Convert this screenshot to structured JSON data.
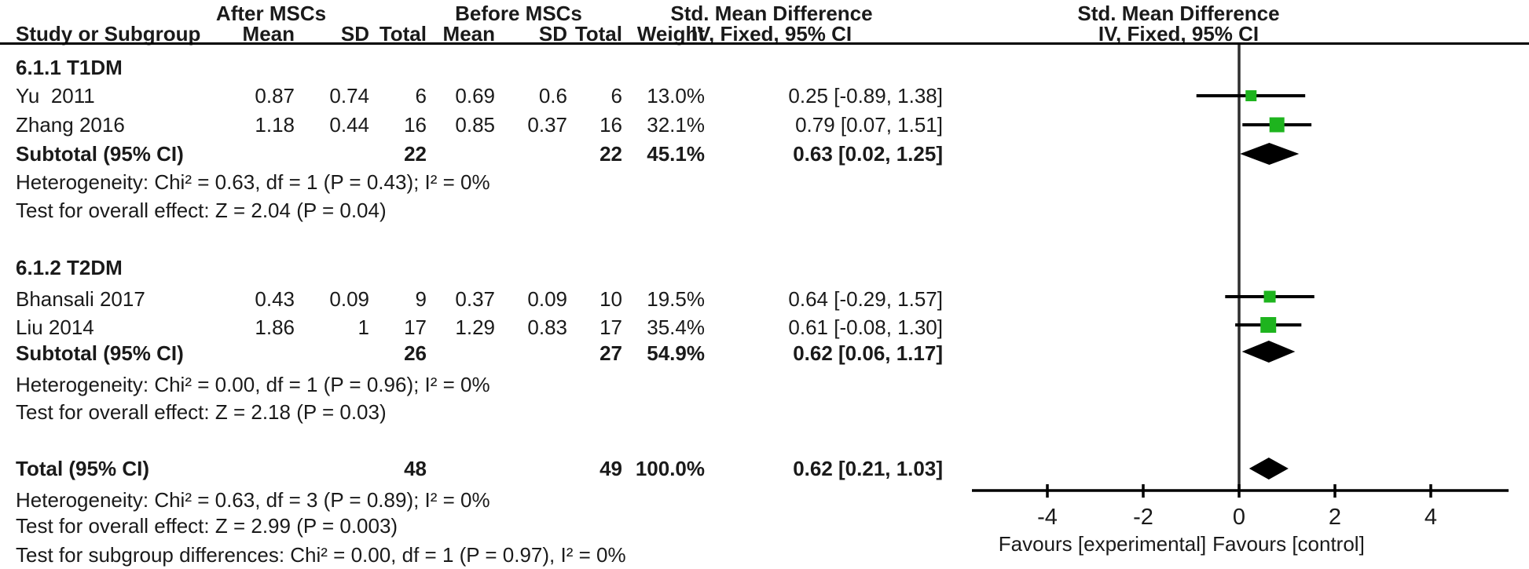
{
  "colors": {
    "marker_green": "#1eb41e",
    "diamond_black": "#000000",
    "line_black": "#2e2e2e",
    "text": "#1a1a1a"
  },
  "header": {
    "group1": "After MSCs",
    "group2": "Before MSCs",
    "effect_left_line1": "Std. Mean Difference",
    "effect_left_line2": "IV, Fixed, 95% CI",
    "effect_right_line1": "Std. Mean Difference",
    "effect_right_line2": "IV, Fixed, 95% CI",
    "study": "Study or Subgroup",
    "mean1": "Mean",
    "sd1": "SD",
    "total1": "Total",
    "mean2": "Mean",
    "sd2": "SD",
    "total2": "Total",
    "weight": "Weight"
  },
  "table": {
    "sections": [
      {
        "heading": "6.1.1 T1DM",
        "studies": [
          {
            "study": "Yu  2011",
            "mean1": "0.87",
            "sd1": "0.74",
            "total1": "6",
            "mean2": "0.69",
            "sd2": "0.6",
            "total2": "6",
            "weight": "13.0%",
            "ci": "0.25 [-0.89, 1.38]"
          },
          {
            "study": "Zhang 2016",
            "mean1": "1.18",
            "sd1": "0.44",
            "total1": "16",
            "mean2": "0.85",
            "sd2": "0.37",
            "total2": "16",
            "weight": "32.1%",
            "ci": "0.79 [0.07, 1.51]"
          }
        ],
        "subtotal": {
          "label": "Subtotal (95% CI)",
          "total1": "22",
          "total2": "22",
          "weight": "45.1%",
          "ci": "0.63 [0.02, 1.25]"
        },
        "heterogeneity": "Heterogeneity: Chi² = 0.63, df = 1 (P = 0.43); I² = 0%",
        "overall_effect": "Test for overall effect: Z = 2.04 (P = 0.04)"
      },
      {
        "heading": "6.1.2 T2DM",
        "studies": [
          {
            "study": "Bhansali 2017",
            "mean1": "0.43",
            "sd1": "0.09",
            "total1": "9",
            "mean2": "0.37",
            "sd2": "0.09",
            "total2": "10",
            "weight": "19.5%",
            "ci": "0.64 [-0.29, 1.57]"
          },
          {
            "study": "Liu 2014",
            "mean1": "1.86",
            "sd1": "1",
            "total1": "17",
            "mean2": "1.29",
            "sd2": "0.83",
            "total2": "17",
            "weight": "35.4%",
            "ci": "0.61 [-0.08, 1.30]"
          }
        ],
        "subtotal": {
          "label": "Subtotal (95% CI)",
          "total1": "26",
          "total2": "27",
          "weight": "54.9%",
          "ci": "0.62 [0.06, 1.17]"
        },
        "heterogeneity": "Heterogeneity: Chi² = 0.00, df = 1 (P = 0.96); I² = 0%",
        "overall_effect": "Test for overall effect: Z = 2.18 (P = 0.03)"
      }
    ],
    "total": {
      "label": "Total (95% CI)",
      "total1": "48",
      "total2": "49",
      "weight": "100.0%",
      "ci": "0.62 [0.21, 1.03]"
    },
    "footer": {
      "heterogeneity": "Heterogeneity: Chi² = 0.63, df = 3 (P = 0.89); I² = 0%",
      "overall_effect": "Test for overall effect: Z = 2.99 (P = 0.003)",
      "subgroup_diff": "Test for subgroup differences: Chi² = 0.00, df = 1 (P = 0.97), I² = 0%"
    }
  },
  "chart_data": {
    "type": "forest",
    "title": "Std. Mean Difference",
    "method": "IV, Fixed, 95% CI",
    "x_axis": {
      "ticks": [
        -4,
        -2,
        0,
        2,
        4
      ],
      "range": [
        -5.6,
        5.6
      ],
      "zero_line": 0
    },
    "axis_labels": {
      "left": "Favours [experimental]",
      "right": "Favours [control]"
    },
    "points": [
      {
        "row": "yu-2011",
        "label": "Yu 2011",
        "type": "study",
        "smd": 0.25,
        "ci_low": -0.89,
        "ci_high": 1.38,
        "weight": 13.0
      },
      {
        "row": "zhang-2016",
        "label": "Zhang 2016",
        "type": "study",
        "smd": 0.79,
        "ci_low": 0.07,
        "ci_high": 1.51,
        "weight": 32.1
      },
      {
        "row": "subtotal-t1dm",
        "label": "Subtotal (95% CI)",
        "type": "diamond",
        "smd": 0.63,
        "ci_low": 0.02,
        "ci_high": 1.25,
        "weight": 45.1
      },
      {
        "row": "bhansali-2017",
        "label": "Bhansali 2017",
        "type": "study",
        "smd": 0.64,
        "ci_low": -0.29,
        "ci_high": 1.57,
        "weight": 19.5
      },
      {
        "row": "liu-2014",
        "label": "Liu 2014",
        "type": "study",
        "smd": 0.61,
        "ci_low": -0.08,
        "ci_high": 1.3,
        "weight": 35.4
      },
      {
        "row": "subtotal-t2dm",
        "label": "Subtotal (95% CI)",
        "type": "diamond",
        "smd": 0.62,
        "ci_low": 0.06,
        "ci_high": 1.17,
        "weight": 54.9
      },
      {
        "row": "total",
        "label": "Total (95% CI)",
        "type": "diamond",
        "smd": 0.62,
        "ci_low": 0.21,
        "ci_high": 1.03,
        "weight": 100.0
      }
    ]
  }
}
